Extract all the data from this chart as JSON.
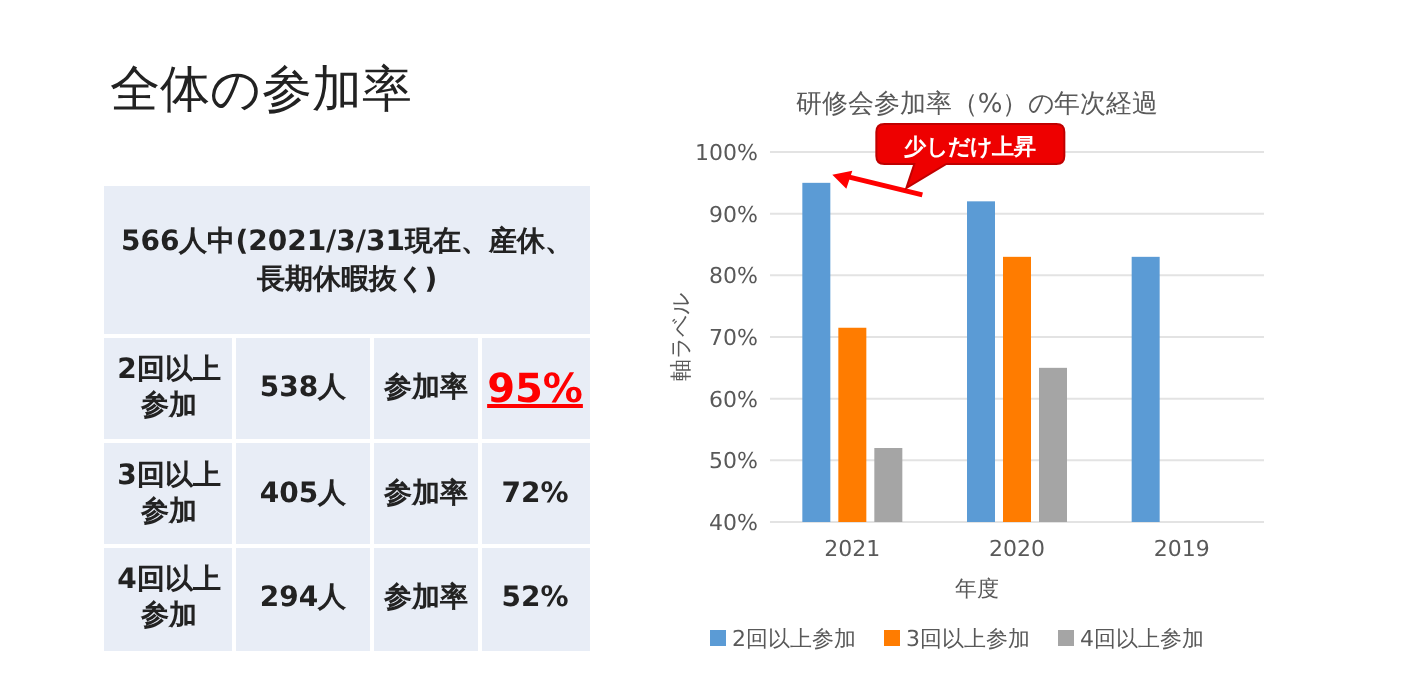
{
  "chart_data": [
    {
      "type": "other",
      "title": "全体の参加率",
      "annotations": [
        "566人中(2021/3/31現在、産休、長期休暇抜く)",
        "2回以上参加",
        "538人",
        "参加率",
        "95%",
        "3回以上参加",
        "405人",
        "参加率",
        "72%",
        "4回以上参加",
        "294人",
        "参加率",
        "52%"
      ]
    },
    {
      "type": "bar",
      "title": "研修会参加率（%）の年次経過",
      "xlabel": "年度",
      "ylabel": "軸ラベル",
      "categories": [
        "2021",
        "2020",
        "2019"
      ],
      "series": [
        {
          "name": "2回以上参加",
          "color": "#5b9bd5",
          "values": [
            95,
            92,
            83
          ]
        },
        {
          "name": "3回以上参加",
          "color": "#ff7c00",
          "values": [
            71.5,
            83,
            null
          ]
        },
        {
          "name": "4回以上参加",
          "color": "#a5a5a5",
          "values": [
            52,
            65,
            null
          ]
        }
      ],
      "ylim": [
        40,
        100
      ],
      "yticks": [
        {
          "value": 40,
          "label": "40%"
        },
        {
          "value": 50,
          "label": "50%"
        },
        {
          "value": 60,
          "label": "60%"
        },
        {
          "value": 70,
          "label": "70%"
        },
        {
          "value": 80,
          "label": "80%"
        },
        {
          "value": 90,
          "label": "90%"
        },
        {
          "value": 100,
          "label": "100%"
        }
      ],
      "grid": "y",
      "legend": "bottom",
      "annotations": [
        "少しだけ上昇"
      ]
    }
  ]
}
